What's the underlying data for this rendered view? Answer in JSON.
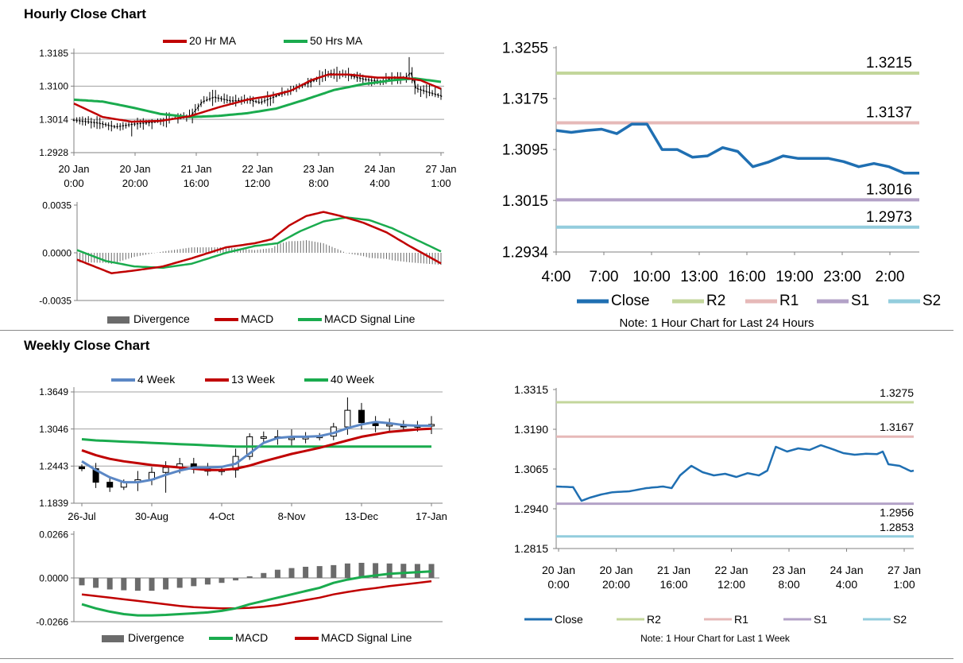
{
  "sections": {
    "hourly_title": "Hourly Close Chart",
    "weekly_title": "Weekly Close Chart"
  },
  "colors": {
    "ma20": "#c00000",
    "ma50": "#1aab4e",
    "w4": "#5b87c5",
    "w13": "#c00000",
    "w40": "#1aab4e",
    "divergence": "#6b6b6b",
    "macd_red": "#c00000",
    "signal_green": "#1aab4e",
    "close": "#1f6fb2",
    "r2": "#c3d69b",
    "r1": "#e6b9b8",
    "s1": "#b3a2c7",
    "s2": "#93cddd"
  },
  "chart_data": [
    {
      "id": "hourly_price",
      "type": "candlestick",
      "legend": [
        "20 Hr MA",
        "50 Hrs MA"
      ],
      "legend_position": "top",
      "yticks": [
        "1.3185",
        "1.3100",
        "1.3014",
        "1.2928"
      ],
      "ylim": [
        1.2928,
        1.3185
      ],
      "xticks": [
        [
          "20 Jan",
          "0:00"
        ],
        [
          "20 Jan",
          "20:00"
        ],
        [
          "21 Jan",
          "16:00"
        ],
        [
          "22 Jan",
          "12:00"
        ],
        [
          "23 Jan",
          "8:00"
        ],
        [
          "24 Jan",
          "4:00"
        ],
        [
          "27 Jan",
          "1:00"
        ]
      ],
      "n": 128,
      "close_anchors": [
        [
          0,
          1.3012
        ],
        [
          8,
          1.3005
        ],
        [
          14,
          1.2995
        ],
        [
          20,
          1.3002
        ],
        [
          28,
          1.3008
        ],
        [
          34,
          1.3016
        ],
        [
          40,
          1.3024
        ],
        [
          44,
          1.306
        ],
        [
          48,
          1.3072
        ],
        [
          54,
          1.3062
        ],
        [
          60,
          1.3065
        ],
        [
          64,
          1.3058
        ],
        [
          68,
          1.307
        ],
        [
          74,
          1.3088
        ],
        [
          78,
          1.31
        ],
        [
          84,
          1.312
        ],
        [
          88,
          1.3133
        ],
        [
          94,
          1.313
        ],
        [
          100,
          1.3118
        ],
        [
          106,
          1.3112
        ],
        [
          110,
          1.3122
        ],
        [
          114,
          1.312
        ],
        [
          116,
          1.3135
        ],
        [
          118,
          1.3095
        ],
        [
          122,
          1.3085
        ],
        [
          128,
          1.3072
        ]
      ],
      "ma20_anchors": [
        [
          0,
          1.3055
        ],
        [
          10,
          1.302
        ],
        [
          20,
          1.3008
        ],
        [
          30,
          1.301
        ],
        [
          40,
          1.3022
        ],
        [
          50,
          1.3045
        ],
        [
          60,
          1.3065
        ],
        [
          68,
          1.3075
        ],
        [
          75,
          1.3088
        ],
        [
          82,
          1.3115
        ],
        [
          88,
          1.313
        ],
        [
          95,
          1.313
        ],
        [
          105,
          1.3122
        ],
        [
          114,
          1.3122
        ],
        [
          120,
          1.3115
        ],
        [
          128,
          1.309
        ]
      ],
      "ma50_anchors": [
        [
          0,
          1.3065
        ],
        [
          10,
          1.306
        ],
        [
          20,
          1.3045
        ],
        [
          30,
          1.3028
        ],
        [
          40,
          1.302
        ],
        [
          50,
          1.3023
        ],
        [
          60,
          1.303
        ],
        [
          70,
          1.3042
        ],
        [
          80,
          1.3065
        ],
        [
          90,
          1.309
        ],
        [
          100,
          1.3105
        ],
        [
          110,
          1.3115
        ],
        [
          118,
          1.312
        ],
        [
          128,
          1.311
        ]
      ]
    },
    {
      "id": "hourly_macd",
      "type": "bar+line",
      "legend": [
        "Divergence",
        "MACD",
        "MACD Signal Line"
      ],
      "legend_position": "bottom",
      "yticks": [
        "0.0035",
        "0.0000",
        "-0.0035"
      ],
      "ylim": [
        -0.0035,
        0.0035
      ],
      "n": 128,
      "macd_anchors": [
        [
          0,
          -0.0005
        ],
        [
          12,
          -0.0015
        ],
        [
          20,
          -0.0013
        ],
        [
          30,
          -0.001
        ],
        [
          40,
          -0.0004
        ],
        [
          52,
          0.0004
        ],
        [
          62,
          0.0007
        ],
        [
          68,
          0.001
        ],
        [
          74,
          0.002
        ],
        [
          80,
          0.0027
        ],
        [
          86,
          0.003
        ],
        [
          92,
          0.0027
        ],
        [
          100,
          0.0022
        ],
        [
          108,
          0.0015
        ],
        [
          116,
          0.0005
        ],
        [
          122,
          -0.0002
        ],
        [
          128,
          -0.0009
        ]
      ],
      "signal_anchors": [
        [
          0,
          0.0002
        ],
        [
          10,
          -0.0006
        ],
        [
          20,
          -0.001
        ],
        [
          30,
          -0.0011
        ],
        [
          40,
          -0.0008
        ],
        [
          52,
          0.0
        ],
        [
          62,
          0.0005
        ],
        [
          70,
          0.0007
        ],
        [
          78,
          0.0016
        ],
        [
          86,
          0.0023
        ],
        [
          94,
          0.0026
        ],
        [
          102,
          0.0024
        ],
        [
          110,
          0.0018
        ],
        [
          118,
          0.001
        ],
        [
          124,
          0.0004
        ],
        [
          128,
          0.0
        ]
      ]
    },
    {
      "id": "hourly_levels",
      "type": "line",
      "legend": [
        "Close",
        "R2",
        "R1",
        "S1",
        "S2"
      ],
      "legend_position": "bottom",
      "note": "Note: 1 Hour Chart for Last 24 Hours",
      "yticks": [
        "1.3255",
        "1.3175",
        "1.3095",
        "1.3015",
        "1.2934"
      ],
      "ylim": [
        1.2934,
        1.3255
      ],
      "xticks": [
        "4:00",
        "7:00",
        "10:00",
        "13:00",
        "16:00",
        "19:00",
        "23:00",
        "2:00"
      ],
      "close": [
        1.3125,
        1.3122,
        1.3125,
        1.3127,
        1.312,
        1.3135,
        1.3135,
        1.3095,
        1.3095,
        1.3083,
        1.3085,
        1.3098,
        1.3092,
        1.3068,
        1.3075,
        1.3085,
        1.3081,
        1.3081,
        1.3081,
        1.3076,
        1.3068,
        1.3073,
        1.3068,
        1.3058,
        1.3058
      ],
      "levels": [
        {
          "name": "R2",
          "value": 1.3215,
          "label": "1.3215"
        },
        {
          "name": "R1",
          "value": 1.3137,
          "label": "1.3137"
        },
        {
          "name": "S1",
          "value": 1.3016,
          "label": "1.3016"
        },
        {
          "name": "S2",
          "value": 1.2973,
          "label": "1.2973"
        }
      ]
    },
    {
      "id": "weekly_price",
      "type": "candlestick",
      "legend": [
        "4 Week",
        "13 Week",
        "40 Week"
      ],
      "legend_position": "top",
      "yticks": [
        "1.3649",
        "1.3046",
        "1.2443",
        "1.1839"
      ],
      "ylim": [
        1.1839,
        1.3649
      ],
      "xticks": [
        "26-Jul",
        "30-Aug",
        "4-Oct",
        "8-Nov",
        "13-Dec",
        "17-Jan"
      ],
      "closes": [
        1.24,
        1.218,
        1.21,
        1.218,
        1.222,
        1.234,
        1.242,
        1.248,
        1.242,
        1.236,
        1.238,
        1.26,
        1.292,
        1.292,
        1.29,
        1.29,
        1.291,
        1.293,
        1.308,
        1.335,
        1.315,
        1.31,
        1.312,
        1.308,
        1.31,
        1.312
      ],
      "w4": [
        1.252,
        1.238,
        1.226,
        1.218,
        1.218,
        1.222,
        1.23,
        1.237,
        1.242,
        1.242,
        1.243,
        1.248,
        1.265,
        1.282,
        1.29,
        1.292,
        1.292,
        1.293,
        1.298,
        1.306,
        1.312,
        1.316,
        1.314,
        1.311,
        1.31,
        1.31
      ],
      "w13": [
        1.27,
        1.262,
        1.256,
        1.252,
        1.249,
        1.246,
        1.244,
        1.242,
        1.24,
        1.238,
        1.238,
        1.24,
        1.245,
        1.252,
        1.258,
        1.264,
        1.269,
        1.274,
        1.28,
        1.286,
        1.292,
        1.296,
        1.3,
        1.302,
        1.304,
        1.305
      ],
      "w40": [
        1.288,
        1.286,
        1.285,
        1.284,
        1.283,
        1.282,
        1.281,
        1.28,
        1.279,
        1.278,
        1.277,
        1.276,
        1.276,
        1.276,
        1.276,
        1.276,
        1.276,
        1.276,
        1.276,
        1.276,
        1.276,
        1.276,
        1.276,
        1.276,
        1.276,
        1.276
      ]
    },
    {
      "id": "weekly_macd",
      "type": "bar+line",
      "legend": [
        "Divergence",
        "MACD",
        "MACD Signal Line"
      ],
      "legend_position": "bottom",
      "yticks": [
        "0.0266",
        "0.0000",
        "-0.0266"
      ],
      "ylim": [
        -0.0266,
        0.0266
      ],
      "divergence": [
        -0.0045,
        -0.006,
        -0.007,
        -0.0075,
        -0.0078,
        -0.0078,
        -0.007,
        -0.006,
        -0.005,
        -0.004,
        -0.003,
        -0.0015,
        0.001,
        0.003,
        0.005,
        0.006,
        0.0068,
        0.0072,
        0.0078,
        0.0088,
        0.0092,
        0.009,
        0.0088,
        0.0086,
        0.0085,
        0.0085
      ],
      "macd": [
        -0.016,
        -0.0185,
        -0.0205,
        -0.022,
        -0.0228,
        -0.0228,
        -0.0225,
        -0.022,
        -0.0215,
        -0.021,
        -0.02,
        -0.0185,
        -0.016,
        -0.014,
        -0.012,
        -0.01,
        -0.008,
        -0.006,
        -0.003,
        -0.001,
        0.0005,
        0.0015,
        0.0025,
        0.003,
        0.0035,
        0.004
      ],
      "signal": [
        -0.01,
        -0.011,
        -0.012,
        -0.013,
        -0.014,
        -0.015,
        -0.016,
        -0.017,
        -0.0178,
        -0.0182,
        -0.0185,
        -0.0185,
        -0.0182,
        -0.0175,
        -0.0165,
        -0.015,
        -0.0135,
        -0.012,
        -0.01,
        -0.0085,
        -0.0072,
        -0.0062,
        -0.005,
        -0.004,
        -0.003,
        -0.002
      ]
    },
    {
      "id": "weekly_levels",
      "type": "line",
      "legend": [
        "Close",
        "R2",
        "R1",
        "S1",
        "S2"
      ],
      "legend_position": "bottom",
      "note": "Note: 1 Hour Chart for Last 1 Week",
      "yticks": [
        "1.3315",
        "1.3190",
        "1.3065",
        "1.2940",
        "1.2815"
      ],
      "ylim": [
        1.2815,
        1.3315
      ],
      "xticks": [
        [
          "20 Jan",
          "0:00"
        ],
        [
          "20 Jan",
          "20:00"
        ],
        [
          "21 Jan",
          "16:00"
        ],
        [
          "22 Jan",
          "12:00"
        ],
        [
          "23 Jan",
          "8:00"
        ],
        [
          "24 Jan",
          "4:00"
        ],
        [
          "27 Jan",
          "1:00"
        ]
      ],
      "n": 128,
      "close_anchors": [
        [
          0,
          1.301
        ],
        [
          6,
          1.3008
        ],
        [
          9,
          1.2965
        ],
        [
          12,
          1.2975
        ],
        [
          16,
          1.2985
        ],
        [
          20,
          1.2992
        ],
        [
          26,
          1.2995
        ],
        [
          32,
          1.3005
        ],
        [
          38,
          1.301
        ],
        [
          41,
          1.3005
        ],
        [
          44,
          1.3045
        ],
        [
          48,
          1.3075
        ],
        [
          52,
          1.3055
        ],
        [
          56,
          1.3045
        ],
        [
          60,
          1.305
        ],
        [
          64,
          1.304
        ],
        [
          68,
          1.3052
        ],
        [
          72,
          1.3045
        ],
        [
          75,
          1.306
        ],
        [
          78,
          1.3135
        ],
        [
          82,
          1.312
        ],
        [
          86,
          1.313
        ],
        [
          90,
          1.3125
        ],
        [
          94,
          1.314
        ],
        [
          98,
          1.3128
        ],
        [
          102,
          1.3115
        ],
        [
          106,
          1.311
        ],
        [
          110,
          1.3113
        ],
        [
          114,
          1.3112
        ],
        [
          116,
          1.312
        ],
        [
          118,
          1.308
        ],
        [
          122,
          1.3075
        ],
        [
          126,
          1.3058
        ],
        [
          128,
          1.3062
        ]
      ],
      "levels": [
        {
          "name": "R2",
          "value": 1.3275,
          "label": "1.3275"
        },
        {
          "name": "R1",
          "value": 1.3167,
          "label": "1.3167"
        },
        {
          "name": "S1",
          "value": 1.2956,
          "label": "1.2956"
        },
        {
          "name": "S2",
          "value": 1.2853,
          "label": "1.2853"
        }
      ]
    }
  ]
}
